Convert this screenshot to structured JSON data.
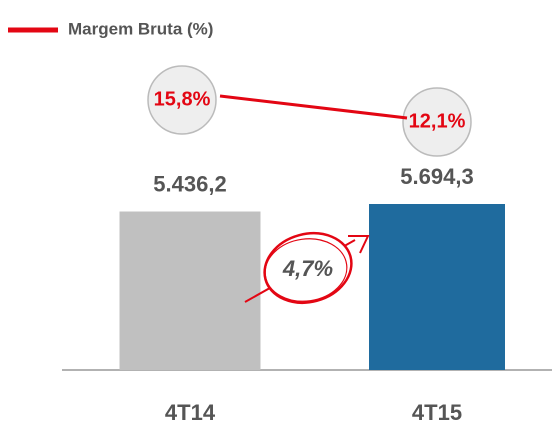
{
  "chart_data": {
    "type": "bar",
    "categories": [
      "4T14",
      "4T15"
    ],
    "bars": {
      "colors": [
        "#c0c0c0",
        "#1f6b9e"
      ],
      "values": [
        5436.2,
        5694.3
      ],
      "value_labels": [
        "5.436,2",
        "5.694,3"
      ]
    },
    "series": [
      {
        "name": "Margem Bruta (%)",
        "color": "#e30613",
        "values": [
          15.8,
          12.1
        ],
        "value_labels": [
          "15,8%",
          "12,1%"
        ]
      }
    ],
    "annotation": "4,7%"
  }
}
